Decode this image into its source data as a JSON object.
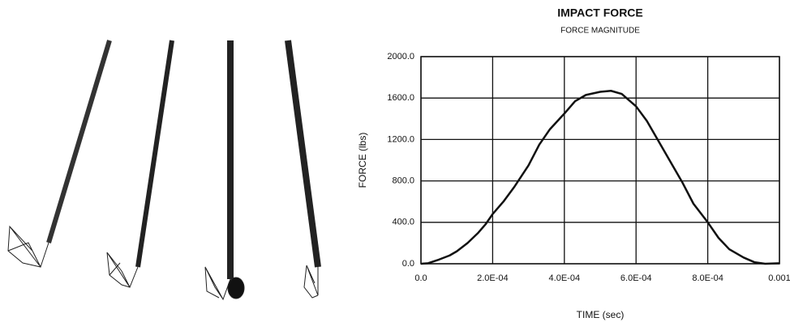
{
  "chart_data": {
    "type": "line",
    "title": "IMPACT FORCE",
    "subtitle": "FORCE MAGNITUDE",
    "x_label": "TIME (sec)",
    "y_label": "FORCE (lbs)",
    "color": "#111111",
    "grid": true,
    "x": [
      0,
      2e-05,
      5e-05,
      8e-05,
      0.0001,
      0.00013,
      0.00016,
      0.00018,
      0.0002,
      0.00023,
      0.00026,
      0.0003,
      0.00033,
      0.00036,
      0.0004,
      0.00043,
      0.00046,
      0.0005,
      0.00053,
      0.00056,
      0.0006,
      0.00063,
      0.00066,
      0.0007,
      0.00073,
      0.00076,
      0.0008,
      0.00083,
      0.00086,
      0.0009,
      0.00093,
      0.00096,
      0.001
    ],
    "values": [
      0,
      5,
      40,
      80,
      120,
      200,
      300,
      380,
      480,
      600,
      740,
      950,
      1150,
      1300,
      1450,
      1570,
      1630,
      1660,
      1670,
      1640,
      1520,
      1380,
      1200,
      960,
      780,
      580,
      400,
      250,
      140,
      60,
      15,
      0,
      5
    ],
    "xlim": [
      0,
      0.001
    ],
    "xticks": [
      {
        "value": 0,
        "label": "0.0"
      },
      {
        "value": 0.0002,
        "label": "2.0E-04"
      },
      {
        "value": 0.0004,
        "label": "4.0E-04"
      },
      {
        "value": 0.0006,
        "label": "6.0E-04"
      },
      {
        "value": 0.0008,
        "label": "8.0E-04"
      },
      0.001
    ],
    "ylim": [
      0,
      2000
    ],
    "yticks": [
      {
        "value": 0,
        "label": "0.0"
      },
      {
        "value": 400,
        "label": "400.0"
      },
      {
        "value": 800,
        "label": "800.0"
      },
      {
        "value": 1200,
        "label": "1200.0"
      },
      {
        "value": 1600,
        "label": "1600.0"
      },
      {
        "value": 2000,
        "label": "2000.0"
      }
    ]
  }
}
